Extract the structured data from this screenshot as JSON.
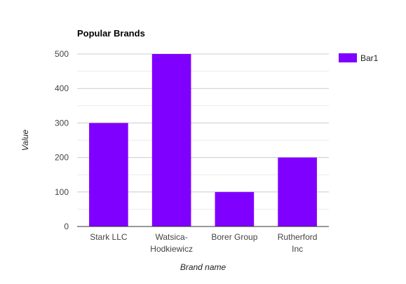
{
  "chart_data": {
    "type": "bar",
    "title": "Popular Brands",
    "xlabel": "Brand name",
    "ylabel": "Value",
    "categories": [
      "Stark LLC",
      "Watsica-Hodkiewicz",
      "Borer Group",
      "Rutherford Inc"
    ],
    "category_label_lines": [
      [
        "Stark LLC"
      ],
      [
        "Watsica-",
        "Hodkiewicz"
      ],
      [
        "Borer Group"
      ],
      [
        "Rutherford",
        "Inc"
      ]
    ],
    "series": [
      {
        "name": "Bar1",
        "values": [
          300,
          500,
          100,
          200
        ],
        "color": "#7f00ff"
      }
    ],
    "ylim": [
      0,
      500
    ],
    "yticks": [
      0,
      100,
      200,
      300,
      400,
      500
    ],
    "grid": true,
    "legend_position": "right"
  }
}
